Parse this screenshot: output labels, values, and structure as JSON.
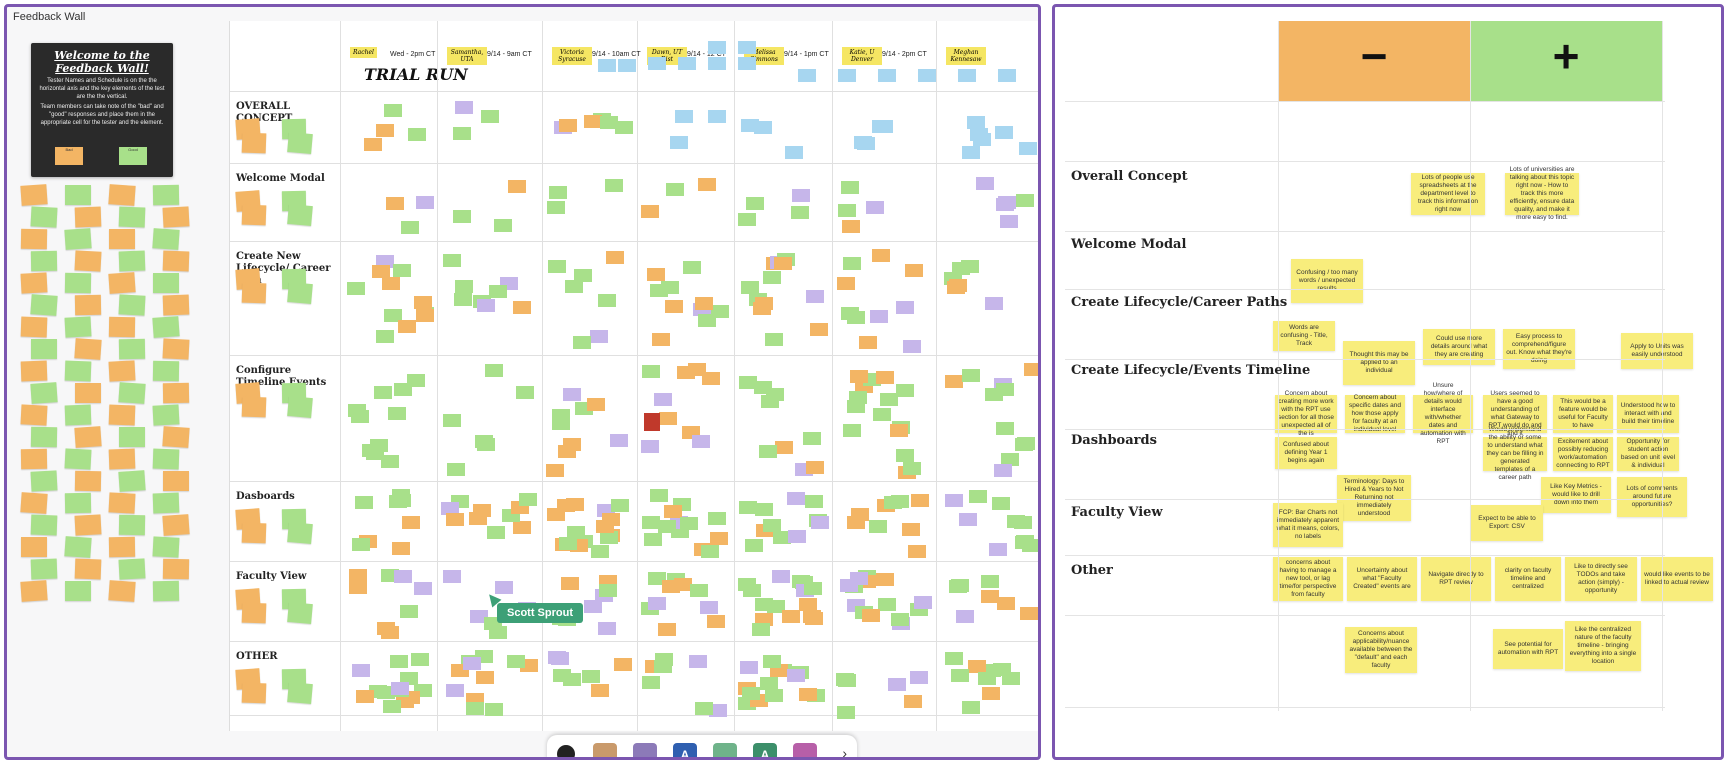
{
  "board_title": "Feedback Wall",
  "intro": {
    "title": "Welcome to the Feedback Wall!",
    "p1": "Tester Names and Schedule is on the the horizontal axis and the key elements of the test are the the vertical.",
    "p2": "Team members can take note of the \"bad\" and \"good\" responses and place them in the appropriate cell for the tester and the element.",
    "bad_label": "Bad",
    "good_label": "Good"
  },
  "wall": {
    "trial_run": "TRIAL RUN",
    "columns": [
      {
        "name": "Rachel",
        "time": "Wed - 2pm CT"
      },
      {
        "name": "Samantha, UTA",
        "time": "9/14 - 9am CT"
      },
      {
        "name": "Victoria Syracuse",
        "time": "9/14 - 10am CT"
      },
      {
        "name": "Dawn, UT Dist",
        "time": "9/14 - 12 CT"
      },
      {
        "name": "Melissa Simmons",
        "time": "9/14 - 1pm CT"
      },
      {
        "name": "Katie, U Denver",
        "time": "9/14 - 2pm CT"
      },
      {
        "name": "Meghan Kennesaw",
        "time": ""
      }
    ],
    "rows": [
      "OVERALL CONCEPT",
      "Welcome Modal",
      "Create New Lifecycle/ Career Path",
      "Configure Timeline Events",
      "Dasboards",
      "Faculty View",
      "OTHER"
    ],
    "cursor_user": "Scott Sprout",
    "collaborators": [
      "A",
      "A"
    ]
  },
  "summary": {
    "minus": "−",
    "plus": "+",
    "rows": [
      "Overall Concept",
      "Welcome Modal",
      "Create Lifecycle/Career Paths",
      "Create Lifecycle/Events Timeline",
      "Dashboards",
      "Faculty View",
      "Other"
    ],
    "notes": {
      "n1": "Lots of people use spreadsheets at the department level to track this information right now",
      "n2": "Lots of universities are talking about this topic right now - How to track this more efficiently, ensure data quality, and make it more easy to find.",
      "n3": "Confusing / too many words / unexpected results",
      "n4": "Words are confusing - Title, Track",
      "n5": "Thought this may be applied to an individual",
      "n6": "Could use more details around what they are creating",
      "n7": "Easy process to comprehend/figure out. Know what they're doing",
      "n8": "Apply to Units was easily understood",
      "n9": "Concern about creating more work with the RPT use section for all those unexpected all of the is",
      "n10": "Concern about specific dates and how those apply for faculty at an individual level",
      "n11": "Unsure how/where of details would interface with/whether dates and automation with RPT",
      "n12": "Users seemed to have a good understanding of what Gateway to RPT would do and find it",
      "n13": "This would be a feature would be useful for Faculty to have",
      "n14": "Understood how to interact with and build their timeline",
      "n15": "Confused about defining Year 1 begins again",
      "n16": "Would understand the ability or some to understand what they can be filling in generated templates of a career path",
      "n17": "Excitement about possibly reducing work/automation connecting to RPT",
      "n18": "Opportunity for student action based on unit level & individual",
      "n19": "Terminology: Days to Hired & Years to Not Returning not immediately understood",
      "n20": "FCP: Bar Charts not immediately apparent what it means, colors, no labels",
      "n21": "Like Key Metrics - would like to drill down into them",
      "n22": "Lots of comments around future opportunities?",
      "n23": "Expect to be able to Export: CSV",
      "n24": "concerns about having to manage a new tool, or lag time/for perspective from faculty",
      "n25": "Uncertainty about what \"Faculty Created\" events are",
      "n26": "Navigate directly to RPT review",
      "n27": "clarity on faculty timeline and centralized",
      "n28": "Like to directly see TODOs and take action (simply) - opportunity",
      "n29": "would like events to be linked to actual review",
      "n30": "Concerns about applicability/nuance available between the \"default\" and each faculty",
      "n31": "See potential for automation with RPT",
      "n32": "Like the centralized nature of the faculty timeline - bringing everything into a single location"
    }
  },
  "colors": {
    "frame": "#7b56b0",
    "orange": "#f3b564",
    "green": "#a8e08a",
    "yellow": "#f8ed7c",
    "blue": "#a7d6f0",
    "purple": "#c6b6ea",
    "red": "#c0392b"
  }
}
